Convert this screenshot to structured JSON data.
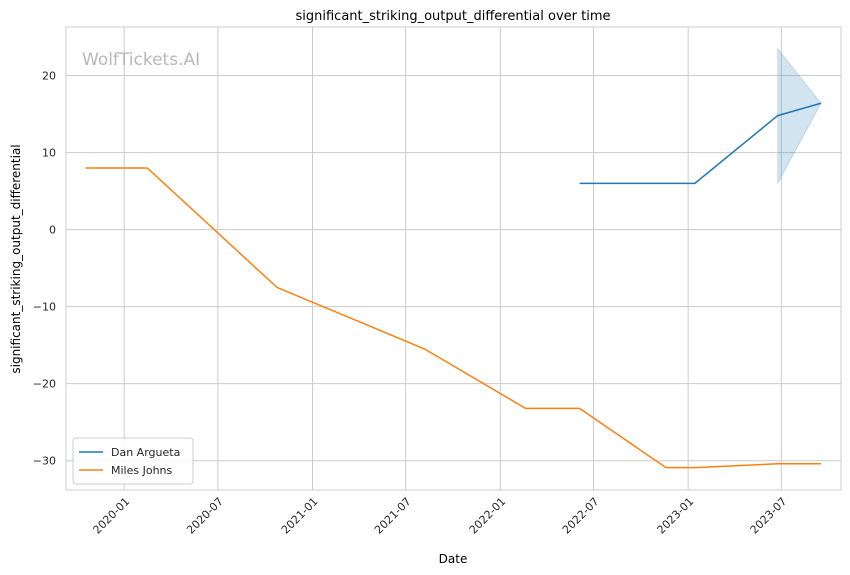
{
  "chart_data": {
    "type": "line",
    "title": "significant_striking_output_differential over time",
    "xlabel": "Date",
    "ylabel": "significant_striking_output_differential",
    "watermark": "WolfTickets.AI",
    "x_ticks": [
      "2020-01",
      "2020-07",
      "2021-01",
      "2021-07",
      "2022-01",
      "2022-07",
      "2023-01",
      "2023-07"
    ],
    "y_ticks": [
      20,
      10,
      0,
      -10,
      -20,
      -30
    ],
    "y_tick_labels": [
      "20",
      "10",
      "0",
      "−10",
      "−20",
      "−30"
    ],
    "xlim": [
      "2019-09-10",
      "2023-10-25"
    ],
    "ylim": [
      -33.8,
      26.3
    ],
    "grid": true,
    "legend_position": "lower-left",
    "series": [
      {
        "name": "Dan Argueta",
        "color": "#1f77b4",
        "points": [
          {
            "x": "2022-06-04",
            "y": 6.0
          },
          {
            "x": "2023-01-14",
            "y": 6.0
          },
          {
            "x": "2023-06-24",
            "y": 14.8
          },
          {
            "x": "2023-09-16",
            "y": 16.4
          }
        ],
        "band": [
          {
            "x": "2023-06-24",
            "low": 6.0,
            "high": 23.5
          },
          {
            "x": "2023-09-16",
            "low": 16.4,
            "high": 16.4
          }
        ]
      },
      {
        "name": "Miles Johns",
        "color": "#ff7f0e",
        "points": [
          {
            "x": "2019-10-18",
            "y": 8.0
          },
          {
            "x": "2020-02-15",
            "y": 8.0
          },
          {
            "x": "2020-10-24",
            "y": -7.5
          },
          {
            "x": "2021-08-07",
            "y": -15.5
          },
          {
            "x": "2022-02-19",
            "y": -23.2
          },
          {
            "x": "2022-06-04",
            "y": -23.2
          },
          {
            "x": "2022-11-19",
            "y": -30.9
          },
          {
            "x": "2023-01-14",
            "y": -30.9
          },
          {
            "x": "2023-06-24",
            "y": -30.4
          },
          {
            "x": "2023-09-16",
            "y": -30.4
          }
        ]
      }
    ]
  }
}
